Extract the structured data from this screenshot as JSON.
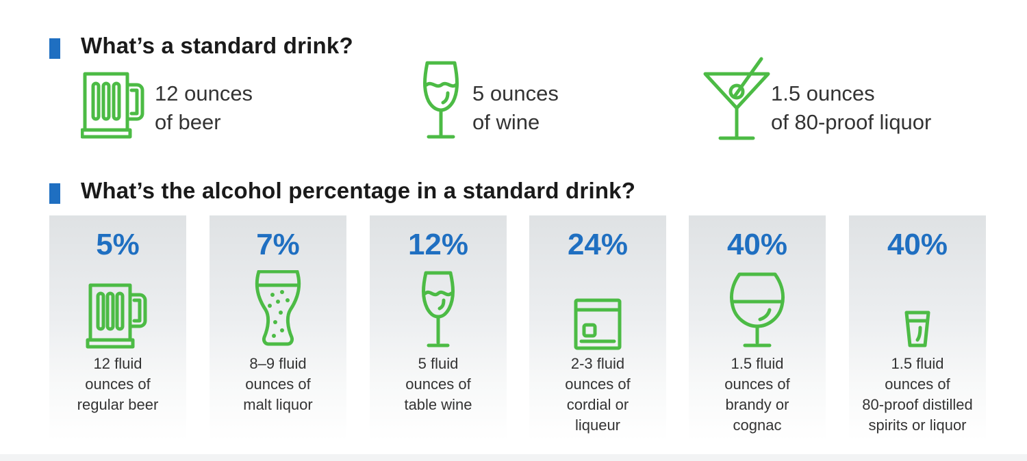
{
  "colors": {
    "accent_blue": "#1f6fc1",
    "icon_green": "#4cbb45",
    "card_gray": "#e3e5e7"
  },
  "standard_drink": {
    "heading": "What’s a standard drink?",
    "items": [
      {
        "icon": "beer-mug-icon",
        "line1": "12 ounces",
        "line2": "of beer"
      },
      {
        "icon": "wine-glass-icon",
        "line1": "5 ounces",
        "line2": "of wine"
      },
      {
        "icon": "martini-glass-icon",
        "line1": "1.5 ounces",
        "line2": "of 80-proof liquor"
      }
    ]
  },
  "alcohol_percentage": {
    "heading": "What’s the alcohol percentage in a standard drink?",
    "cards": [
      {
        "percent": "5%",
        "icon": "beer-mug-icon",
        "lines": [
          "12 fluid",
          "ounces of",
          "regular beer"
        ]
      },
      {
        "percent": "7%",
        "icon": "malt-liquor-glass-icon",
        "lines": [
          "8–9 fluid",
          "ounces of",
          "malt liquor"
        ]
      },
      {
        "percent": "12%",
        "icon": "wine-glass-icon",
        "lines": [
          "5 fluid",
          "ounces of",
          "table wine"
        ]
      },
      {
        "percent": "24%",
        "icon": "cordial-glass-icon",
        "lines": [
          "2-3 fluid",
          "ounces of",
          "cordial or",
          "liqueur"
        ]
      },
      {
        "percent": "40%",
        "icon": "brandy-snifter-icon",
        "lines": [
          "1.5 fluid",
          "ounces of",
          "brandy or",
          "cognac"
        ]
      },
      {
        "percent": "40%",
        "icon": "shot-glass-icon",
        "lines": [
          "1.5 fluid",
          "ounces of",
          "80-proof distilled",
          "spirits or liquor"
        ]
      }
    ]
  }
}
